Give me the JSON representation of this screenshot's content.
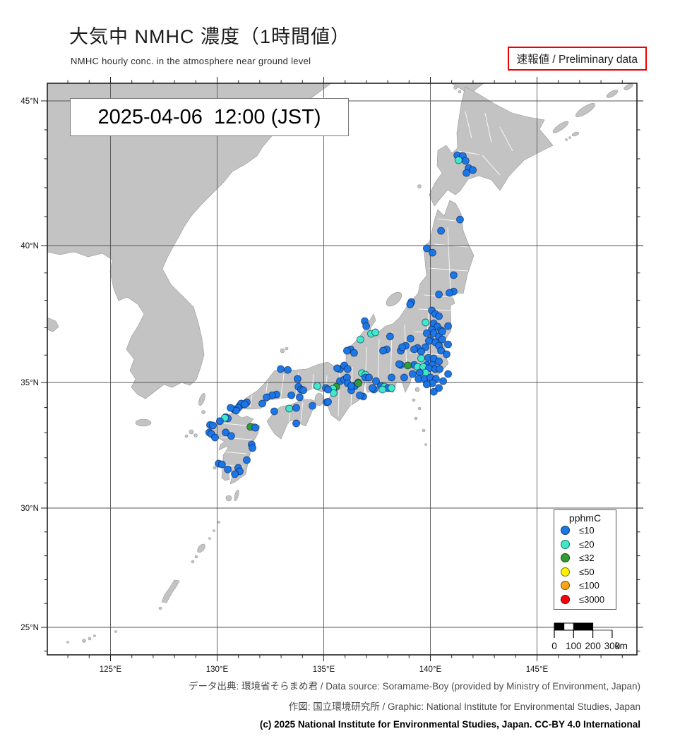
{
  "header": {
    "title": "大気中 NMHC 濃度（1時間値）",
    "subtitle": "NMHC hourly conc. in the atmosphere near ground level",
    "preliminary": "速報値 / Preliminary data"
  },
  "map": {
    "timestamp": "2025-04-06  12:00 (JST)"
  },
  "footer": {
    "line1": "データ出典: 環境省そらまめ君 / Data source: Soramame-Boy (provided by Ministry of Environment, Japan)",
    "line2": "作図: 国立環境研究所 / Graphic: National Institute for Environmental Studies, Japan",
    "line3": "(c) 2025 National Institute for Environmental Studies, Japan. CC-BY 4.0 International"
  },
  "chart_data": {
    "type": "scatter",
    "notes": "NMHC hourly concentration monitoring stations plotted on a map of Japan; point color encodes concentration class (pphmC)",
    "title": "大気中 NMHC 濃度（1時間値）",
    "timestamp": "2025-04-06 12:00 (JST)",
    "x_axis": {
      "ticks": [
        125,
        130,
        135,
        140,
        145
      ],
      "tick_labels": [
        "125°E",
        "130°E",
        "135°E",
        "140°E",
        "145°E"
      ],
      "range": [
        122.0,
        149.7
      ],
      "minor_step": 1
    },
    "y_axis": {
      "ticks": [
        45,
        40,
        35,
        30,
        25
      ],
      "tick_labels": [
        "45°N",
        "40°N",
        "35°N",
        "30°N",
        "25°N"
      ],
      "range": [
        23.9,
        45.6
      ],
      "minor_step": 1
    },
    "legend": {
      "title": "pphmC",
      "entries": [
        {
          "label": "≤10",
          "value": 10,
          "color": "#1b76e6"
        },
        {
          "label": "≤20",
          "value": 20,
          "color": "#3fe8c8"
        },
        {
          "label": "≤32",
          "value": 32,
          "color": "#2f9e2f"
        },
        {
          "label": "≤50",
          "value": 50,
          "color": "#fff400"
        },
        {
          "label": "≤100",
          "value": 100,
          "color": "#ffa414"
        },
        {
          "label": "≤3000",
          "value": 3000,
          "color": "#f90207"
        }
      ]
    },
    "scale_bar": {
      "tick_labels": [
        "0",
        "100",
        "200",
        "300"
      ],
      "unit": "km"
    },
    "points": [
      [
        141.26,
        43.12,
        10
      ],
      [
        141.52,
        43.1,
        10
      ],
      [
        141.32,
        42.95,
        20
      ],
      [
        141.65,
        42.93,
        10
      ],
      [
        141.79,
        42.68,
        10
      ],
      [
        141.99,
        42.61,
        10
      ],
      [
        141.69,
        42.51,
        10
      ],
      [
        141.39,
        40.9,
        10
      ],
      [
        140.5,
        40.51,
        10
      ],
      [
        139.83,
        39.9,
        10
      ],
      [
        140.1,
        39.74,
        10
      ],
      [
        141.09,
        38.92,
        10
      ],
      [
        140.4,
        38.22,
        10
      ],
      [
        141.09,
        38.32,
        10
      ],
      [
        140.89,
        38.27,
        10
      ],
      [
        139.11,
        37.94,
        10
      ],
      [
        139.05,
        37.85,
        10
      ],
      [
        140.07,
        37.63,
        10
      ],
      [
        140.23,
        37.5,
        10
      ],
      [
        140.4,
        37.42,
        10
      ],
      [
        139.77,
        37.19,
        20
      ],
      [
        140.16,
        37.16,
        10
      ],
      [
        140.33,
        37.04,
        10
      ],
      [
        140.07,
        36.93,
        10
      ],
      [
        140.5,
        36.91,
        10
      ],
      [
        140.16,
        36.8,
        10
      ],
      [
        140.4,
        36.68,
        10
      ],
      [
        140.56,
        36.57,
        10
      ],
      [
        140.0,
        36.55,
        10
      ],
      [
        140.23,
        36.47,
        10
      ],
      [
        140.4,
        36.34,
        10
      ],
      [
        140.83,
        37.06,
        10
      ],
      [
        140.56,
        36.86,
        10
      ],
      [
        139.83,
        36.8,
        10
      ],
      [
        139.93,
        36.52,
        10
      ],
      [
        140.5,
        36.16,
        10
      ],
      [
        140.83,
        36.39,
        10
      ],
      [
        140.76,
        36.03,
        10
      ],
      [
        139.07,
        36.6,
        10
      ],
      [
        138.61,
        36.16,
        10
      ],
      [
        139.77,
        36.29,
        10
      ],
      [
        139.4,
        36.26,
        10
      ],
      [
        139.57,
        36.13,
        10
      ],
      [
        139.24,
        36.21,
        10
      ],
      [
        138.84,
        36.34,
        10
      ],
      [
        139.24,
        35.64,
        10
      ],
      [
        138.61,
        35.64,
        10
      ],
      [
        139.57,
        35.88,
        20
      ],
      [
        139.9,
        35.9,
        10
      ],
      [
        140.16,
        35.88,
        10
      ],
      [
        140.4,
        35.77,
        10
      ],
      [
        139.83,
        35.64,
        10
      ],
      [
        140.1,
        35.64,
        10
      ],
      [
        139.4,
        35.57,
        20
      ],
      [
        139.67,
        35.57,
        20
      ],
      [
        139.93,
        35.52,
        10
      ],
      [
        140.23,
        35.49,
        10
      ],
      [
        140.43,
        35.49,
        10
      ],
      [
        139.77,
        35.36,
        20
      ],
      [
        139.5,
        35.36,
        10
      ],
      [
        139.17,
        35.31,
        10
      ],
      [
        139.44,
        35.13,
        10
      ],
      [
        139.73,
        35.13,
        10
      ],
      [
        140.0,
        35.18,
        10
      ],
      [
        140.26,
        35.13,
        10
      ],
      [
        140.1,
        34.97,
        10
      ],
      [
        139.83,
        34.92,
        10
      ],
      [
        140.4,
        34.78,
        10
      ],
      [
        140.16,
        34.63,
        10
      ],
      [
        140.6,
        35.05,
        10
      ],
      [
        140.83,
        35.31,
        10
      ],
      [
        138.94,
        35.62,
        32
      ],
      [
        138.54,
        35.67,
        10
      ],
      [
        138.77,
        35.18,
        10
      ],
      [
        138.18,
        35.18,
        10
      ],
      [
        137.68,
        34.86,
        10
      ],
      [
        137.85,
        34.83,
        20
      ],
      [
        138.01,
        34.78,
        10
      ],
      [
        137.35,
        34.72,
        10
      ],
      [
        138.18,
        34.78,
        20
      ],
      [
        137.75,
        34.72,
        20
      ],
      [
        138.11,
        36.68,
        10
      ],
      [
        137.95,
        36.21,
        10
      ],
      [
        137.78,
        36.16,
        10
      ],
      [
        138.68,
        36.29,
        10
      ],
      [
        136.92,
        37.24,
        10
      ],
      [
        136.99,
        37.06,
        10
      ],
      [
        137.22,
        36.78,
        20
      ],
      [
        137.42,
        36.83,
        20
      ],
      [
        136.72,
        36.57,
        20
      ],
      [
        136.26,
        36.21,
        10
      ],
      [
        136.42,
        36.08,
        10
      ],
      [
        136.09,
        36.16,
        10
      ],
      [
        135.76,
        35.49,
        10
      ],
      [
        135.96,
        35.62,
        10
      ],
      [
        136.12,
        35.49,
        10
      ],
      [
        136.79,
        35.34,
        20
      ],
      [
        136.95,
        35.28,
        20
      ],
      [
        136.95,
        35.18,
        10
      ],
      [
        137.12,
        35.18,
        10
      ],
      [
        137.45,
        35.05,
        10
      ],
      [
        136.62,
        35.0,
        10
      ],
      [
        136.85,
        34.44,
        10
      ],
      [
        136.69,
        34.49,
        10
      ],
      [
        136.46,
        34.86,
        10
      ],
      [
        136.29,
        34.69,
        10
      ],
      [
        137.28,
        34.78,
        10
      ],
      [
        135.63,
        35.52,
        10
      ],
      [
        135.76,
        35.05,
        10
      ],
      [
        135.96,
        35.1,
        10
      ],
      [
        136.09,
        35.18,
        10
      ],
      [
        136.12,
        34.97,
        10
      ],
      [
        136.29,
        34.86,
        10
      ],
      [
        136.62,
        34.97,
        32
      ],
      [
        135.59,
        34.83,
        32
      ],
      [
        135.43,
        34.75,
        20
      ],
      [
        135.46,
        34.58,
        20
      ],
      [
        135.1,
        34.78,
        10
      ],
      [
        135.2,
        34.72,
        10
      ],
      [
        134.7,
        34.86,
        20
      ],
      [
        135.13,
        34.21,
        10
      ],
      [
        135.2,
        34.23,
        10
      ],
      [
        132.98,
        35.49,
        10
      ],
      [
        133.31,
        35.46,
        10
      ],
      [
        133.77,
        35.13,
        10
      ],
      [
        133.81,
        34.83,
        10
      ],
      [
        133.94,
        34.72,
        10
      ],
      [
        134.04,
        34.69,
        10
      ],
      [
        133.48,
        34.49,
        10
      ],
      [
        133.87,
        34.41,
        10
      ],
      [
        132.78,
        34.52,
        10
      ],
      [
        132.58,
        34.49,
        10
      ],
      [
        132.32,
        34.41,
        10
      ],
      [
        132.12,
        34.16,
        10
      ],
      [
        131.39,
        34.21,
        10
      ],
      [
        131.06,
        34.07,
        10
      ],
      [
        131.13,
        34.16,
        10
      ],
      [
        131.29,
        34.13,
        10
      ],
      [
        130.99,
        33.99,
        10
      ],
      [
        133.38,
        33.96,
        20
      ],
      [
        133.71,
        33.99,
        10
      ],
      [
        132.68,
        33.85,
        10
      ],
      [
        134.47,
        34.07,
        10
      ],
      [
        133.71,
        33.37,
        10
      ],
      [
        130.79,
        33.93,
        10
      ],
      [
        130.89,
        33.88,
        10
      ],
      [
        130.63,
        33.99,
        10
      ],
      [
        130.4,
        33.62,
        10
      ],
      [
        130.5,
        33.57,
        10
      ],
      [
        130.36,
        33.59,
        20
      ],
      [
        130.13,
        33.46,
        10
      ],
      [
        129.67,
        33.31,
        10
      ],
      [
        129.8,
        33.29,
        10
      ],
      [
        129.63,
        33.01,
        10
      ],
      [
        129.73,
        32.95,
        10
      ],
      [
        129.9,
        32.81,
        10
      ],
      [
        131.56,
        33.23,
        32
      ],
      [
        131.79,
        33.2,
        10
      ],
      [
        130.4,
        33.01,
        10
      ],
      [
        130.66,
        32.87,
        10
      ],
      [
        131.62,
        32.53,
        10
      ],
      [
        131.66,
        32.39,
        10
      ],
      [
        131.39,
        31.91,
        10
      ],
      [
        130.07,
        31.77,
        10
      ],
      [
        130.23,
        31.74,
        10
      ],
      [
        130.5,
        31.54,
        10
      ],
      [
        130.99,
        31.6,
        10
      ],
      [
        131.06,
        31.46,
        10
      ],
      [
        130.83,
        31.35,
        10
      ]
    ]
  }
}
